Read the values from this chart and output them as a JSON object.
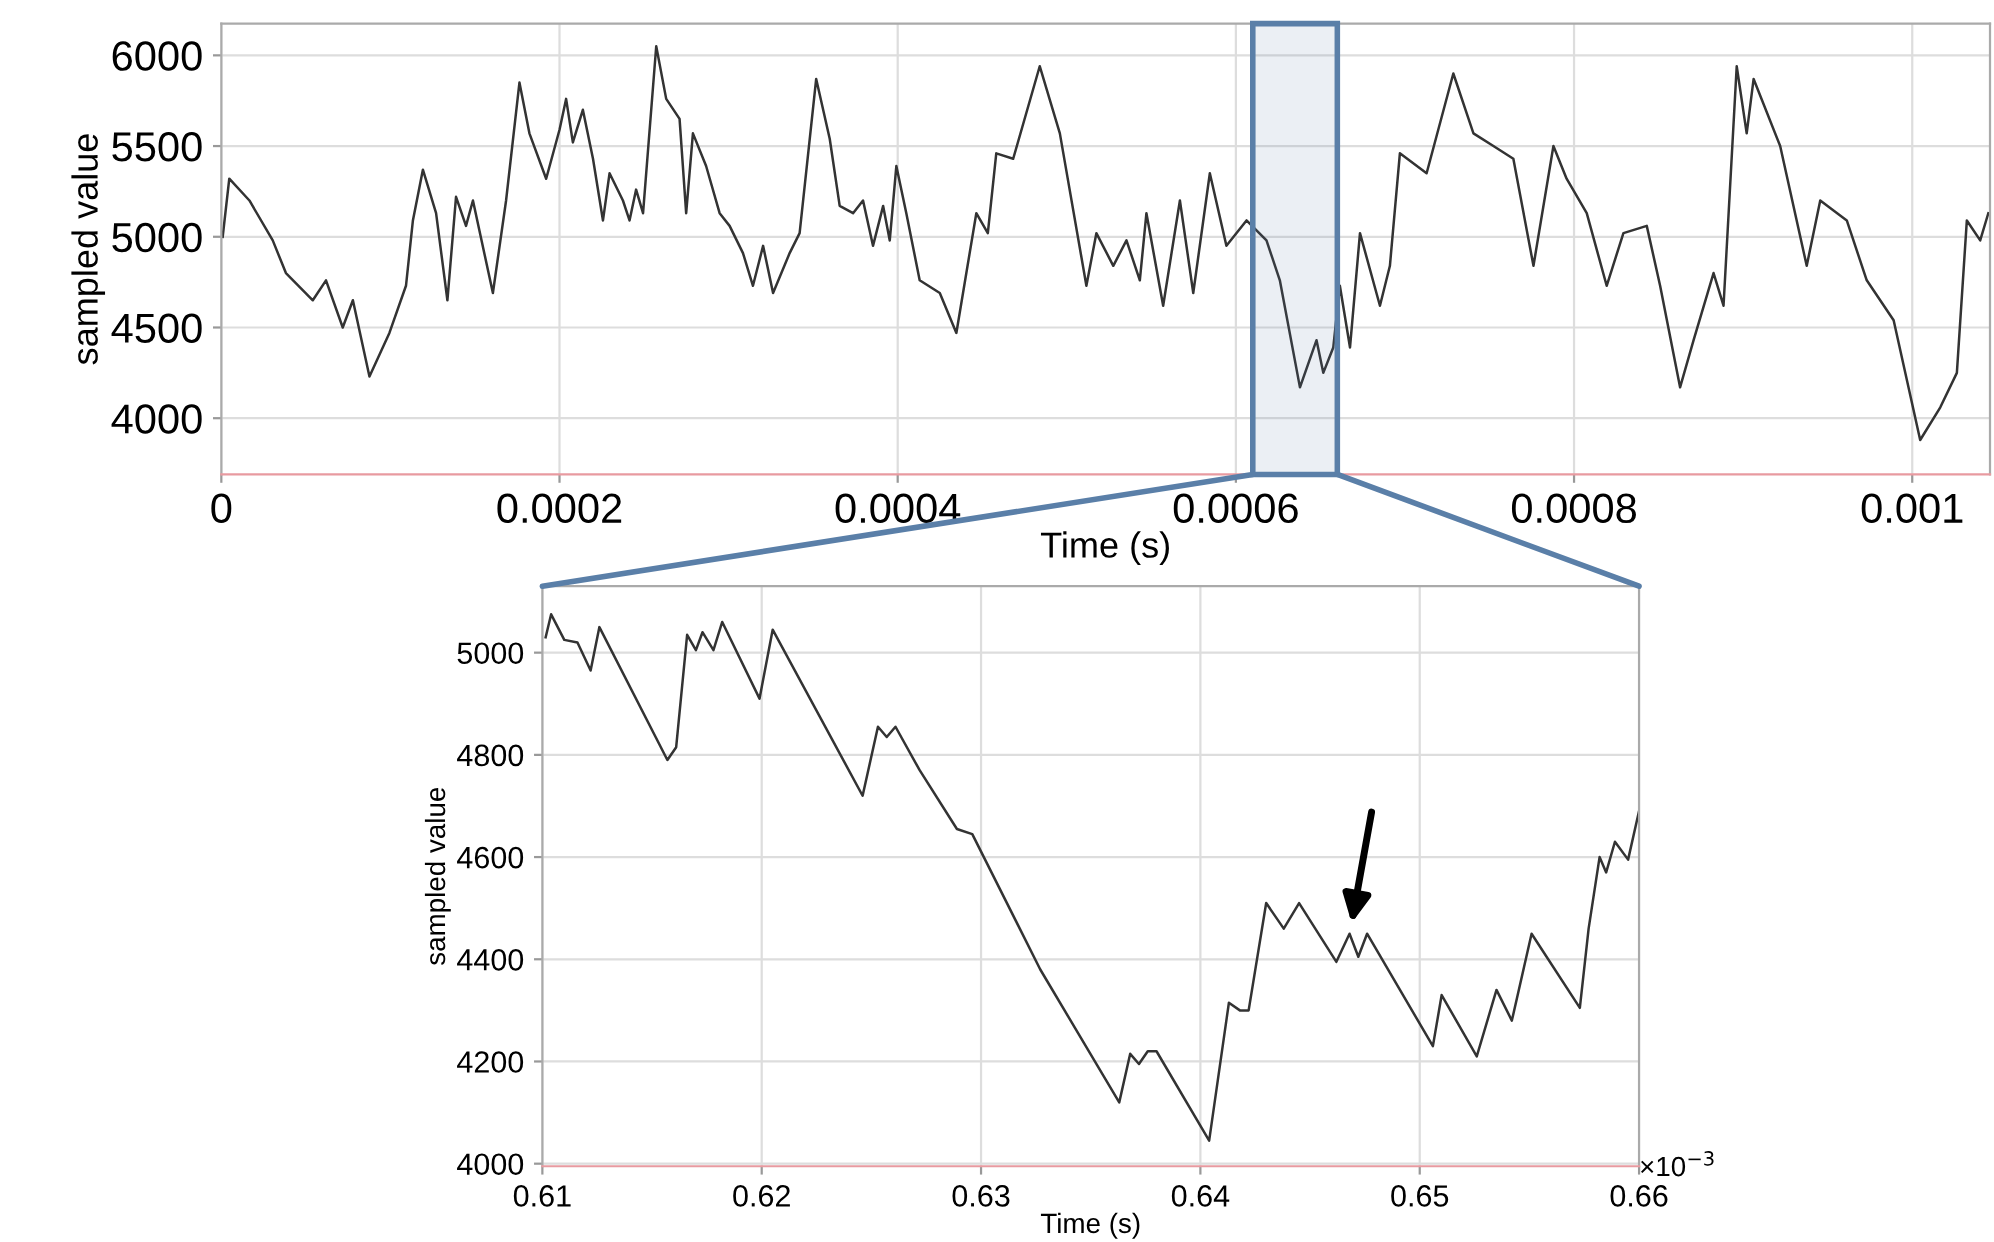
{
  "chart_data": [
    {
      "type": "line",
      "xlabel": "Time (s)",
      "ylabel": "sampled value",
      "xlim": [
        0,
        0.001046
      ],
      "ylim": [
        3690,
        6175
      ],
      "xticks": [
        0,
        0.0002,
        0.0004,
        0.0006,
        0.0008,
        0.001
      ],
      "yticks": [
        4000,
        4500,
        5000,
        5500,
        6000
      ],
      "grid": true,
      "bands": [
        {
          "axis": "x",
          "from": 0.00061,
          "to": 0.00066,
          "color": "#5a7fa8"
        }
      ],
      "series": [
        {
          "color": "#333333",
          "x": [
            8e-07,
            4.7e-06,
            1.66e-05,
            3.04e-05,
            3.82e-05,
            5.41e-05,
            6.19e-05,
            7.18e-05,
            7.78e-05,
            8.76e-05,
            9.94e-05,
            0.0001092,
            0.0001133,
            0.0001192,
            0.000127,
            0.0001337,
            0.0001388,
            0.0001447,
            0.0001488,
            0.0001606,
            0.0001684,
            0.0001763,
            0.0001822,
            0.0001921,
            0.0002,
            0.0002039,
            0.0002079,
            0.0002138,
            0.0002198,
            0.0002257,
            0.0002296,
            0.0002375,
            0.0002414,
            0.0002453,
            0.0002494,
            0.0002572,
            0.0002631,
            0.000271,
            0.0002749,
            0.0002789,
            0.0002867,
            0.0002947,
            0.0003006,
            0.0003085,
            0.0003144,
            0.0003204,
            0.0003263,
            0.0003361,
            0.000342,
            0.0003518,
            0.0003598,
            0.0003657,
            0.0003736,
            0.0003795,
            0.0003854,
            0.0003914,
            0.0003953,
            0.0003992,
            0.0004051,
            0.000413,
            0.0004249,
            0.0004347,
            0.0004406,
            0.0004465,
            0.0004533,
            0.0004583,
            0.0004683,
            0.000484,
            0.0004959,
            0.0005116,
            0.0005175,
            0.0005275,
            0.0005353,
            0.0005432,
            0.0005471,
            0.000557,
            0.0005669,
            0.0005748,
            0.0005846,
            0.0005944,
            0.0006063,
            0.0006181,
            0.000626,
            0.0006379,
            0.0006477,
            0.0006517,
            0.0006576,
            0.0006615,
            0.0006675,
            0.0006734,
            0.0006852,
            0.0006911,
            0.000697,
            0.0007128,
            0.0007286,
            0.0007405,
            0.0007523,
            0.0007641,
            0.000776,
            0.0007878,
            0.0007956,
            0.0008075,
            0.0008193,
            0.0008292,
            0.000843,
            0.0008509,
            0.0008627,
            0.0008707,
            0.0008825,
            0.0008884,
            0.0008962,
            0.0009021,
            0.0009062,
            0.0009219,
            0.0009376,
            0.0009456,
            0.0009613,
            0.0009731,
            0.000989,
            0.0010047,
            0.0010166,
            0.0010264,
            0.0010323,
            0.0010402,
            0.001045
          ],
          "values": [
            5000,
            5320,
            5200,
            4980,
            4800,
            4650,
            4760,
            4500,
            4650,
            4230,
            4470,
            4730,
            5090,
            5370,
            5130,
            4650,
            5220,
            5060,
            5200,
            4690,
            5200,
            5850,
            5570,
            5320,
            5590,
            5760,
            5520,
            5700,
            5430,
            5090,
            5350,
            5200,
            5090,
            5260,
            5130,
            6050,
            5760,
            5650,
            5130,
            5570,
            5390,
            5130,
            5060,
            4910,
            4730,
            4950,
            4690,
            4910,
            5020,
            5870,
            5540,
            5170,
            5130,
            5200,
            4950,
            5170,
            4980,
            5390,
            5130,
            4760,
            4690,
            4470,
            4800,
            5130,
            5020,
            5460,
            5430,
            5940,
            5570,
            4730,
            5020,
            4840,
            4980,
            4760,
            5130,
            4620,
            5200,
            4690,
            5350,
            4950,
            5090,
            4980,
            4760,
            4170,
            4430,
            4250,
            4390,
            4730,
            4390,
            5020,
            4620,
            4840,
            5460,
            5350,
            5900,
            5570,
            5500,
            5430,
            4840,
            5500,
            5320,
            5130,
            4730,
            5020,
            5060,
            4730,
            4170,
            4430,
            4800,
            4620,
            5940,
            5570,
            5870,
            5500,
            4840,
            5200,
            5090,
            4760,
            4540,
            3880,
            4060,
            4250,
            5090,
            4980,
            5130
          ]
        }
      ]
    },
    {
      "type": "line",
      "xlabel": "Time (s)",
      "ylabel": "sampled value",
      "xlim": [
        0.61,
        0.66
      ],
      "ylim": [
        3995,
        5130
      ],
      "xticks": [
        0.61,
        0.62,
        0.63,
        0.64,
        0.65,
        0.66
      ],
      "yticks": [
        4000,
        4200,
        4400,
        4600,
        4800,
        5000
      ],
      "grid": true,
      "annotations": [
        "×10$^{−3}$"
      ],
      "series": [
        {
          "color": "#333333",
          "x": [
            0.61015,
            0.6104,
            0.611,
            0.6116,
            0.6122,
            0.6126,
            0.6157,
            0.6161,
            0.6166,
            0.617,
            0.6173,
            0.6178,
            0.6182,
            0.6199,
            0.6205,
            0.6246,
            0.6253,
            0.6257,
            0.6261,
            0.6272,
            0.6289,
            0.6296,
            0.6327,
            0.6363,
            0.6368,
            0.6372,
            0.6376,
            0.638,
            0.6404,
            0.6413,
            0.6418,
            0.6422,
            0.643,
            0.6438,
            0.6445,
            0.6462,
            0.6468,
            0.6472,
            0.6476,
            0.6506,
            0.651,
            0.6526,
            0.6535,
            0.6542,
            0.6551,
            0.6573,
            0.6577,
            0.6582,
            0.6585,
            0.6589,
            0.6595,
            0.66
          ],
          "values": [
            5030,
            5075,
            5025,
            5020,
            4965,
            5050,
            4790,
            4815,
            5035,
            5005,
            5040,
            5005,
            5060,
            4910,
            5045,
            4720,
            4855,
            4835,
            4855,
            4770,
            4655,
            4645,
            4380,
            4120,
            4215,
            4195,
            4220,
            4220,
            4045,
            4315,
            4300,
            4300,
            4510,
            4460,
            4510,
            4395,
            4450,
            4405,
            4450,
            4230,
            4330,
            4210,
            4340,
            4280,
            4450,
            4305,
            4460,
            4600,
            4570,
            4630,
            4595,
            4690
          ]
        }
      ]
    }
  ]
}
